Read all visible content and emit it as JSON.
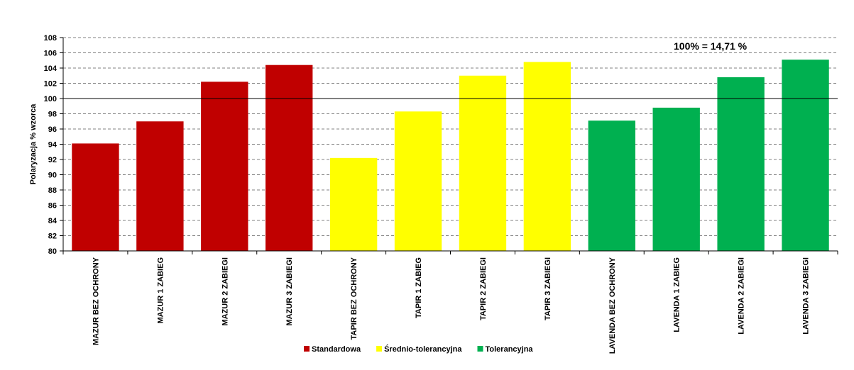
{
  "chart_data": {
    "type": "bar",
    "ylabel": "Polaryzacja % wzorca",
    "xlabel": "",
    "ylim": [
      80,
      108
    ],
    "ytick_step": 2,
    "grid": true,
    "reference_line": 100,
    "annotation": "100% = 14,71 %",
    "legend_position": "bottom",
    "categories": [
      "MAZUR BEZ OCHRONY",
      "MAZUR 1 ZABIEG",
      "MAZUR 2 ZABIEGI",
      "MAZUR 3 ZABIEGI",
      "TAPIR BEZ OCHRONY",
      "TAPIR 1 ZABIEG",
      "TAPIR 2 ZABIEGI",
      "TAPIR 3 ZABIEGI",
      "LAVENDA BEZ OCHRONY",
      "LAVENDA 1 ZABIEG",
      "LAVENDA 2 ZABIEGI",
      "LAVENDA 3 ZABIEGI"
    ],
    "values": [
      94.1,
      97.0,
      102.2,
      104.4,
      92.2,
      98.3,
      103.0,
      104.8,
      97.1,
      98.8,
      102.8,
      105.1
    ],
    "bar_groups": [
      0,
      0,
      0,
      0,
      1,
      1,
      1,
      1,
      2,
      2,
      2,
      2
    ],
    "groups": [
      {
        "name": "Standardowa",
        "color": "#C00000"
      },
      {
        "name": "Średnio-tolerancyjna",
        "color": "#FFFF00"
      },
      {
        "name": "Tolerancyjna",
        "color": "#00B050"
      }
    ]
  }
}
